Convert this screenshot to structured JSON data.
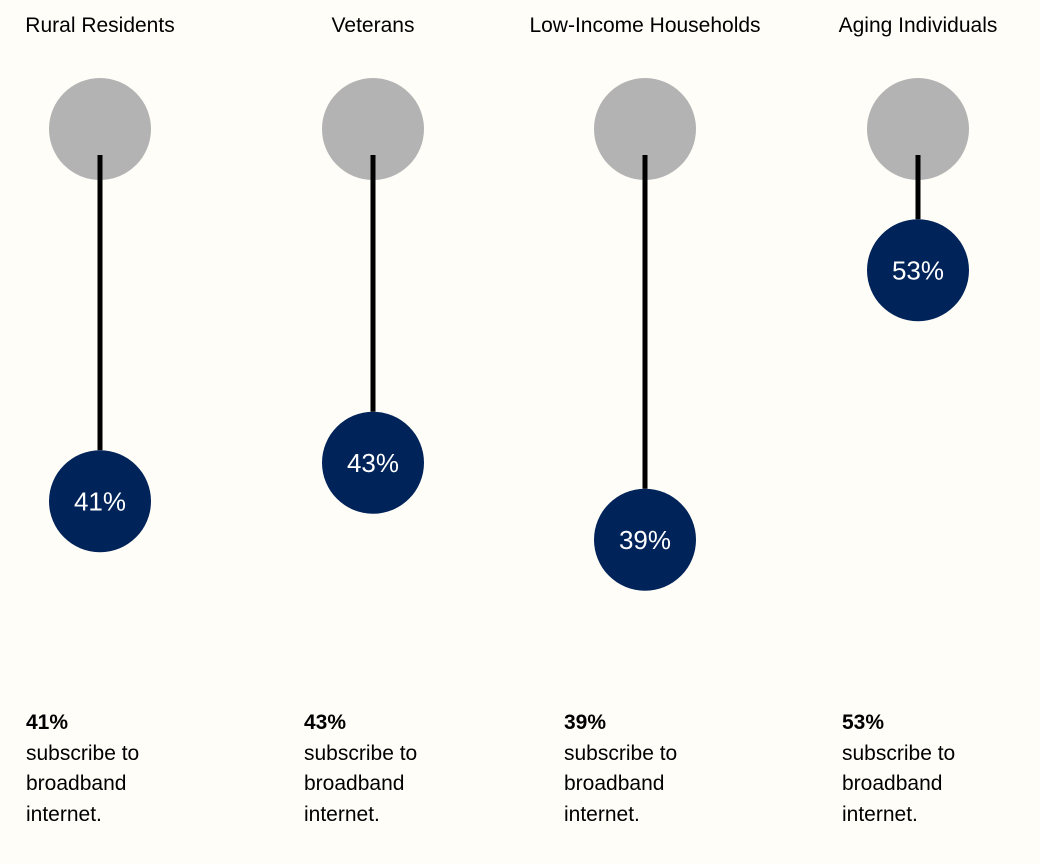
{
  "chart_data": {
    "type": "dumbbell",
    "categories": [
      "Rural Residents",
      "Veterans",
      "Low-Income Households",
      "Aging Individuals"
    ],
    "values": [
      41,
      43,
      39,
      53
    ],
    "value_labels": [
      "41%",
      "43%",
      "39%",
      "53%"
    ],
    "captions": [
      {
        "pct": "41%",
        "lines": [
          "subscribe to",
          "broadband",
          "internet."
        ]
      },
      {
        "pct": "43%",
        "lines": [
          "subscribe to",
          "broadband",
          "internet."
        ]
      },
      {
        "pct": "39%",
        "lines": [
          "subscribe to",
          "broadband",
          "internet."
        ]
      },
      {
        "pct": "53%",
        "lines": [
          "subscribe to",
          "broadband",
          "internet."
        ]
      }
    ],
    "reference_value": 100,
    "colors": {
      "reference_circle": "#b3b3b3",
      "value_circle": "#00235a",
      "stem": "#000000",
      "value_label": "#ffffff"
    }
  }
}
